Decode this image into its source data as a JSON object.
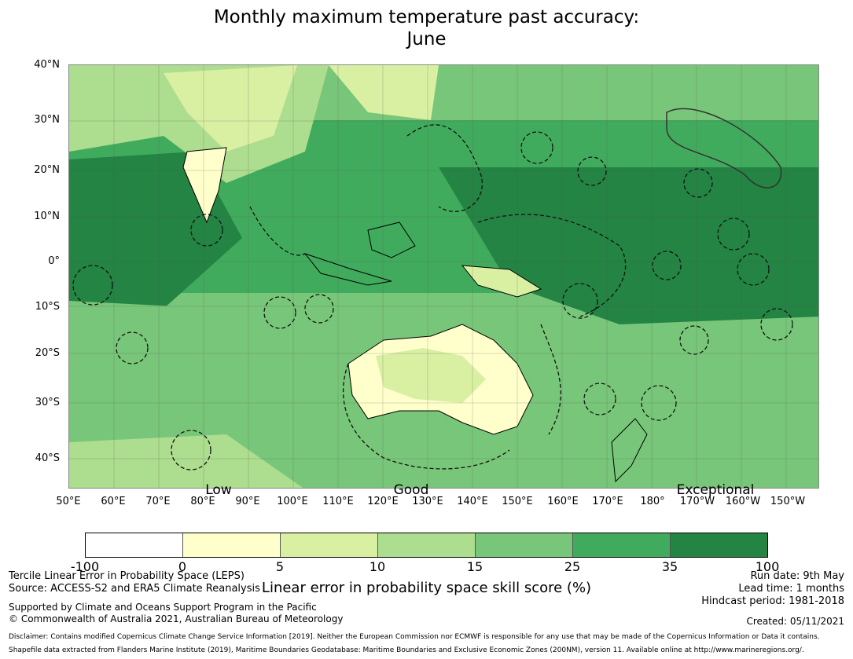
{
  "title_line1": "Monthly maximum temperature past accuracy:",
  "title_line2": "June",
  "map": {
    "lat_labels": [
      "40°N",
      "30°N",
      "20°N",
      "10°N",
      "0°",
      "10°S",
      "20°S",
      "30°S",
      "40°S"
    ],
    "lon_labels": [
      "50°E",
      "60°E",
      "70°E",
      "80°E",
      "90°E",
      "100°E",
      "110°E",
      "120°E",
      "130°E",
      "140°E",
      "150°E",
      "160°E",
      "170°E",
      "180°",
      "170°W",
      "160°W",
      "150°W"
    ],
    "class_labels": [
      "Low",
      "Good",
      "Exceptional"
    ]
  },
  "legend": {
    "colors": [
      "#ffffff",
      "#ffffcc",
      "#d9f0a3",
      "#addd8e",
      "#78c679",
      "#41ab5d",
      "#238443"
    ],
    "ticks": [
      "-100",
      "0",
      "5",
      "10",
      "15",
      "25",
      "35",
      "100"
    ],
    "label": "Linear error in probability space skill score (%)"
  },
  "info_left": {
    "line1": "Tercile Linear Error in Probability Space (LEPS)",
    "line2": "Source: ACCESS-S2 and ERA5 Climate Reanalysis",
    "line3": "Supported by Climate and Oceans Support Program in the Pacific",
    "line4": "© Commonwealth of Australia 2021, Australian Bureau of Meteorology"
  },
  "info_right": {
    "run_date": "Run date: 9th May",
    "lead_time": "Lead time: 1 months",
    "hindcast": "Hindcast period: 1981-2018",
    "created": "Created: 05/11/2021"
  },
  "disclaimer": "Disclaimer: Contains modified Copernicus Climate Change Service Information [2019]. Neither the European Commission nor ECMWF is responsible for any use that may be made of the Copernicus Information or Data it contains.",
  "shapefile": "Shapefile data extracted from Flanders Marine Institute (2019), Maritime Boundaries Geodatabase: Maritime Boundaries and Exclusive Economic Zones (200NM), version 11. Available online at http://www.marineregions.org/."
}
